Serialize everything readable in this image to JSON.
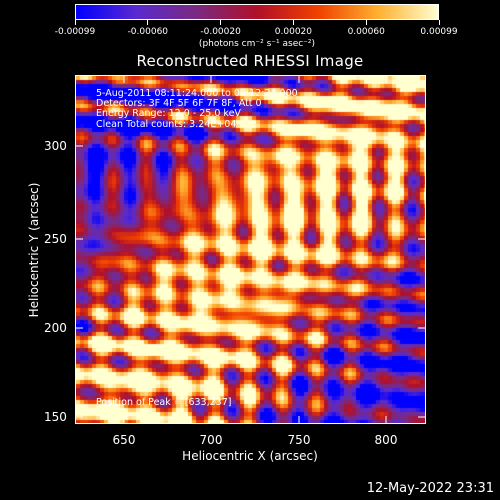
{
  "colorbar": {
    "tick_labels": [
      "-0.00099",
      "-0.00060",
      "-0.00020",
      "0.00020",
      "0.00060",
      "0.00099"
    ],
    "units": "(photons cm⁻² s⁻¹ asec⁻²)",
    "colormap": [
      "#0000ff",
      "#5a2ad0",
      "#7a2a80",
      "#b0102a",
      "#f04000",
      "#ffb030",
      "#ffffd0"
    ]
  },
  "title": "Reconstructed RHESSI Image",
  "info": {
    "time": "5-Aug-2011 08:11:24.000 to 08:12:24.000",
    "detectors": "Detectors: 3F 4F 5F 6F 7F 8F, Att 0",
    "energy": "Energy Range: 12.0 - 25.0 keV",
    "clean": "Clean     Total counts: 3.24E+04",
    "peak": "Position of Peak = [633,237]"
  },
  "axes": {
    "xlabel": "Heliocentric X (arcsec)",
    "ylabel": "Heliocentric Y (arcsec)",
    "xticks": [
      "650",
      "700",
      "750",
      "800"
    ],
    "yticks": [
      "300",
      "250",
      "200",
      "150"
    ]
  },
  "footer": {
    "date": "12-May-2022 23:31"
  }
}
